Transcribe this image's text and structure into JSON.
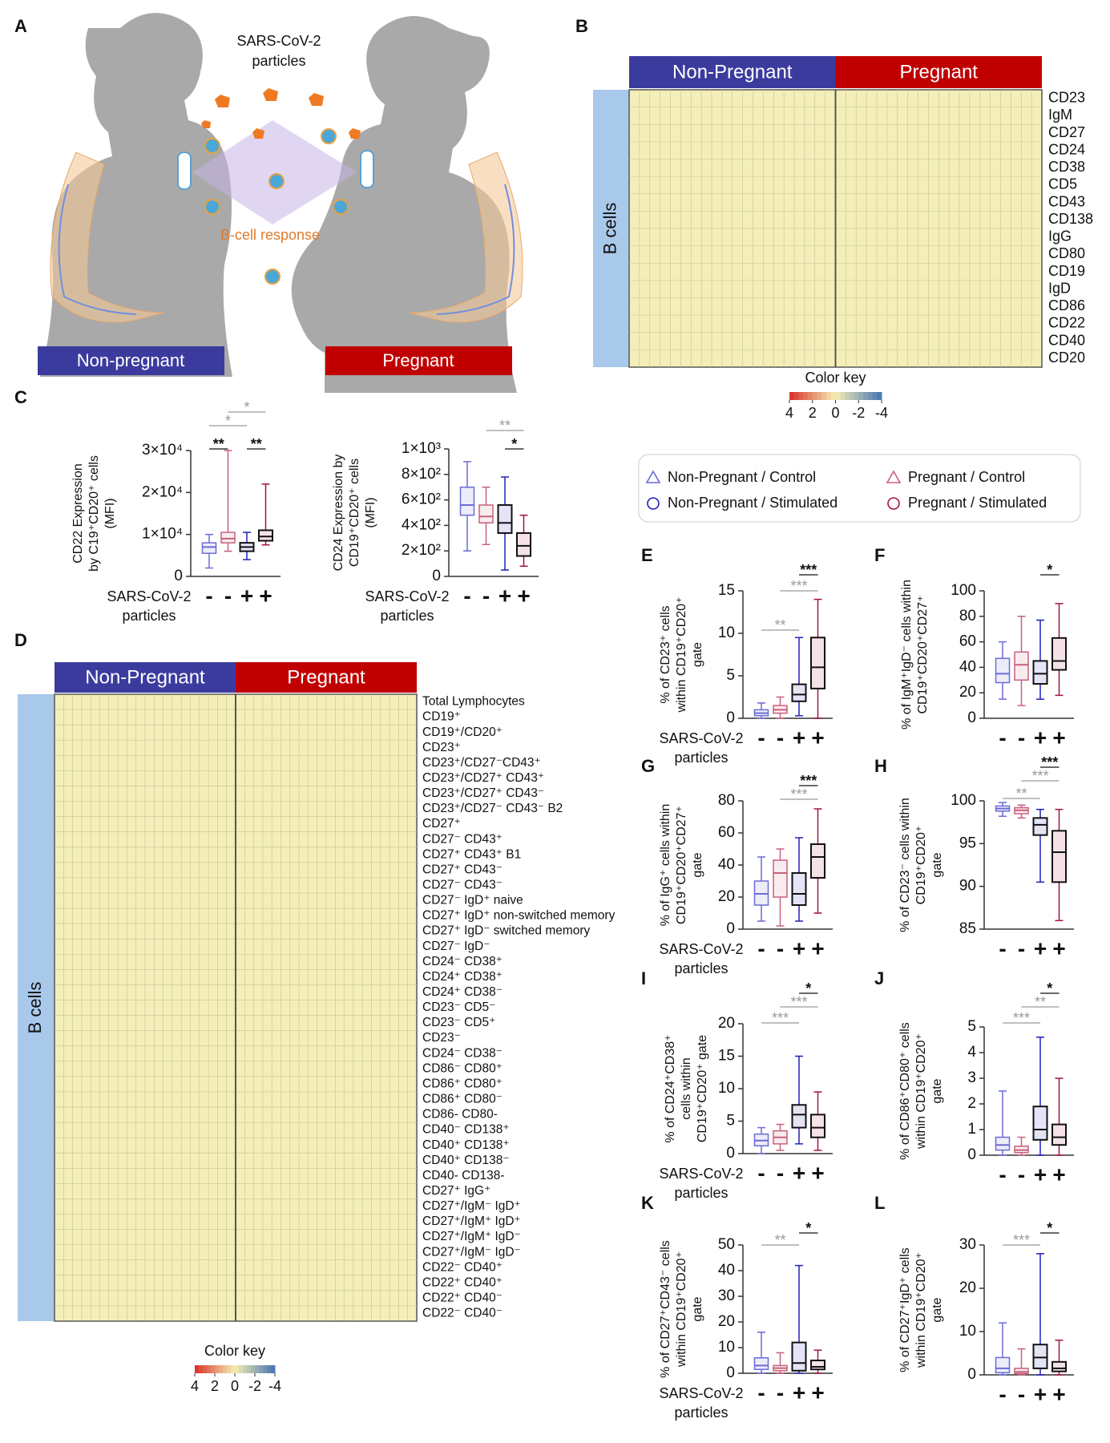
{
  "diagram": {
    "panel": "A",
    "title_lines": [
      "SARS-CoV-2",
      "particles"
    ],
    "response": "B-cell response",
    "left": "Non-pregnant",
    "right": "Pregnant",
    "left_color": "#3b3b9e",
    "right_color": "#c00000"
  },
  "groups": [
    {
      "name": "Non-Pregnant / Control",
      "color": "#6b6bd6",
      "marker": "triangle"
    },
    {
      "name": "Pregnant / Control",
      "color": "#c8607c",
      "marker": "triangle"
    },
    {
      "name": "Non-Pregnant / Stimulated",
      "color": "#2020b8",
      "marker": "circle"
    },
    {
      "name": "Pregnant / Stimulated",
      "color": "#a3143c",
      "marker": "circle"
    }
  ],
  "chart_data": [
    {
      "type": "heatmap",
      "panel": "B",
      "groups": [
        "Non-Pregnant",
        "Pregnant"
      ],
      "colors": [
        "#3b3b9e",
        "#c00000"
      ],
      "side_label": "B cells",
      "rows": [
        "CD23",
        "IgM",
        "CD27",
        "CD24",
        "CD38",
        "CD5",
        "CD43",
        "CD138",
        "IgG",
        "CD80",
        "CD19",
        "IgD",
        "CD86",
        "CD22",
        "CD40",
        "CD20"
      ],
      "color_key": {
        "title": "Color key",
        "ticks": [
          4,
          2,
          0,
          -2,
          -4
        ]
      }
    },
    {
      "type": "box",
      "panel": "C",
      "ylabel": [
        "CD22 Expression",
        "by C19⁺CD20⁺ cells",
        "(MFI)"
      ],
      "xlabel_lines": [
        "SARS-CoV-2",
        "particles"
      ],
      "categories": [
        "-",
        "-",
        "+",
        "+"
      ],
      "ylim": [
        0,
        30000
      ],
      "yticks": [
        0,
        {
          "value": 10000,
          "label": "1×10⁴"
        },
        {
          "value": 20000,
          "label": "2×10⁴"
        },
        {
          "value": 30000,
          "label": "3×10⁴"
        }
      ],
      "stats": [
        [
          2000,
          5500,
          7000,
          8000,
          10000
        ],
        [
          6000,
          8000,
          9000,
          10500,
          30000
        ],
        [
          4000,
          6000,
          7000,
          8000,
          10500
        ],
        [
          7500,
          8500,
          9500,
          11000,
          22000
        ]
      ],
      "significance": [
        "**",
        "**",
        "*",
        "*"
      ]
    },
    {
      "type": "box",
      "panel": null,
      "ylabel": [
        "CD24 Expression by",
        "CD19⁺CD20⁺ cells",
        "(MFI)"
      ],
      "xlabel_lines": [
        "SARS-CoV-2",
        "particles"
      ],
      "categories": [
        "-",
        "-",
        "+",
        "+"
      ],
      "ylim": [
        0,
        1000
      ],
      "yticks": [
        0,
        {
          "value": 200,
          "label": "2×10²"
        },
        {
          "value": 400,
          "label": "4×10²"
        },
        {
          "value": 600,
          "label": "6×10²"
        },
        {
          "value": 800,
          "label": "8×10²"
        },
        {
          "value": 1000,
          "label": "1×10³"
        }
      ],
      "stats": [
        [
          200,
          480,
          560,
          700,
          900
        ],
        [
          250,
          420,
          470,
          560,
          700
        ],
        [
          50,
          340,
          420,
          560,
          780
        ],
        [
          80,
          160,
          240,
          340,
          480
        ]
      ],
      "significance": [
        "**",
        "*"
      ]
    },
    {
      "type": "heatmap",
      "panel": "D",
      "groups": [
        "Non-Pregnant",
        "Pregnant"
      ],
      "colors": [
        "#3b3b9e",
        "#c00000"
      ],
      "side_label": "B cells",
      "rows": [
        "Total Lymphocytes",
        "CD19⁺",
        "CD19⁺/CD20⁺",
        "CD23⁺",
        "CD23⁺/CD27⁻CD43⁺",
        "CD23⁺/CD27⁺ CD43⁺",
        "CD23⁺/CD27⁺ CD43⁻",
        "CD23⁺/CD27⁻ CD43⁻ B2",
        "CD27⁺",
        "CD27⁻ CD43⁺",
        "CD27⁺ CD43⁺ B1",
        "CD27⁺ CD43⁻",
        "CD27⁻ CD43⁻",
        "CD27⁻ IgD⁺ naive",
        "CD27⁺ IgD⁺ non-switched memory",
        "CD27⁺ IgD⁻ switched memory",
        "CD27⁻ IgD⁻",
        "CD24⁻ CD38⁺",
        "CD24⁺ CD38⁺",
        "CD24⁺ CD38⁻",
        "CD23⁻ CD5⁻",
        "CD23⁻ CD5⁺",
        "CD23⁻",
        "CD24⁻ CD38⁻",
        "CD86⁻ CD80⁺",
        "CD86⁺ CD80⁺",
        "CD86⁺ CD80⁻",
        "CD86- CD80-",
        "CD40⁻ CD138⁺",
        "CD40⁺ CD138⁺",
        "CD40⁺ CD138⁻",
        "CD40- CD138-",
        "CD27⁺ IgG⁺",
        "CD27⁺/IgM⁻ IgD⁺",
        "CD27⁺/IgM⁺ IgD⁺",
        "CD27⁺/IgM⁺ IgD⁻",
        "CD27⁺/IgM⁻ IgD⁻",
        "CD22⁻ CD40⁺",
        "CD22⁺ CD40⁺",
        "CD22⁺ CD40⁻",
        "CD22⁻ CD40⁻"
      ],
      "color_key": {
        "title": "Color key",
        "ticks": [
          4,
          2,
          0,
          -2,
          -4
        ]
      }
    },
    {
      "type": "box",
      "panel": "E",
      "ylabel": [
        "% of CD23⁺ cells",
        "within CD19⁺CD20⁺",
        "gate"
      ],
      "xlabel_lines": [
        "SARS-CoV-2",
        "particles"
      ],
      "categories": [
        "-",
        "-",
        "+",
        "+"
      ],
      "ylim": [
        0,
        15
      ],
      "yticks": [
        0,
        5,
        10,
        15
      ],
      "stats": [
        [
          0,
          0.3,
          0.6,
          1,
          1.8
        ],
        [
          0,
          0.6,
          1,
          1.5,
          2.5
        ],
        [
          0.3,
          2,
          2.8,
          4,
          9.5
        ],
        [
          0,
          3.5,
          6,
          9.5,
          14
        ]
      ],
      "significance": [
        "***",
        "***",
        "**"
      ]
    },
    {
      "type": "box",
      "panel": "F",
      "ylabel": [
        "% of IgM⁺IgD⁻ cells within",
        "CD19⁺CD20⁺CD27⁺"
      ],
      "categories": [
        "-",
        "-",
        "+",
        "+"
      ],
      "ylim": [
        0,
        100
      ],
      "yticks": [
        0,
        20,
        40,
        60,
        80,
        100
      ],
      "stats": [
        [
          15,
          28,
          35,
          47,
          60
        ],
        [
          10,
          30,
          42,
          52,
          80
        ],
        [
          15,
          27,
          35,
          45,
          77
        ],
        [
          18,
          38,
          45,
          63,
          90
        ]
      ],
      "significance": [
        "*"
      ]
    },
    {
      "type": "box",
      "panel": "G",
      "ylabel": [
        "% of IgG⁺ cells within",
        "CD19⁺CD20⁺CD27⁺",
        "gate"
      ],
      "xlabel_lines": [
        "SARS-CoV-2",
        "particles"
      ],
      "categories": [
        "-",
        "-",
        "+",
        "+"
      ],
      "ylim": [
        0,
        80
      ],
      "yticks": [
        0,
        20,
        40,
        60,
        80
      ],
      "stats": [
        [
          5,
          15,
          22,
          30,
          45
        ],
        [
          2,
          20,
          35,
          43,
          50
        ],
        [
          5,
          15,
          22,
          35,
          57
        ],
        [
          10,
          32,
          45,
          53,
          75
        ]
      ],
      "significance": [
        "***",
        "***"
      ]
    },
    {
      "type": "box",
      "panel": "H",
      "ylabel": [
        "% of CD23⁻ cells within",
        "CD19⁺CD20⁺",
        "gate"
      ],
      "categories": [
        "-",
        "-",
        "+",
        "+"
      ],
      "ylim": [
        85,
        100
      ],
      "yticks": [
        85,
        90,
        95,
        100
      ],
      "stats": [
        [
          98.2,
          98.8,
          99.1,
          99.4,
          99.8
        ],
        [
          98,
          98.5,
          98.9,
          99.2,
          99.5
        ],
        [
          90.5,
          96,
          97.2,
          98,
          99
        ],
        [
          86,
          90.5,
          94,
          96.5,
          99
        ]
      ],
      "significance": [
        "***",
        "***",
        "**"
      ]
    },
    {
      "type": "box",
      "panel": "I",
      "ylabel": [
        "% of CD24⁺CD38⁺",
        "cells within",
        "CD19⁺CD20⁺ gate"
      ],
      "xlabel_lines": [
        "SARS-CoV-2",
        "particles"
      ],
      "categories": [
        "-",
        "-",
        "+",
        "+"
      ],
      "ylim": [
        0,
        20
      ],
      "yticks": [
        0,
        5,
        10,
        15,
        20
      ],
      "stats": [
        [
          0,
          1.2,
          2,
          3,
          4
        ],
        [
          0.5,
          1.5,
          2.5,
          3.5,
          4.5
        ],
        [
          1.5,
          4,
          6,
          7.5,
          15
        ],
        [
          0.5,
          2.5,
          4,
          6,
          9.5
        ]
      ],
      "significance": [
        "*",
        "***",
        "***"
      ]
    },
    {
      "type": "box",
      "panel": "J",
      "ylabel": [
        "% of CD86⁺CD80⁺ cells",
        "within CD19⁺CD20⁺",
        "gate"
      ],
      "categories": [
        "-",
        "-",
        "+",
        "+"
      ],
      "ylim": [
        0,
        5
      ],
      "yticks": [
        0,
        1,
        2,
        3,
        4,
        5
      ],
      "stats": [
        [
          0,
          0.2,
          0.4,
          0.7,
          2.5
        ],
        [
          0,
          0.1,
          0.2,
          0.35,
          0.7
        ],
        [
          0,
          0.6,
          1,
          1.9,
          4.6
        ],
        [
          0,
          0.4,
          0.7,
          1.2,
          3
        ]
      ],
      "significance": [
        "*",
        "**",
        "***"
      ]
    },
    {
      "type": "box",
      "panel": "K",
      "ylabel": [
        "% of CD27⁺CD43⁻ cells",
        "within CD19⁺CD20⁺",
        "gate"
      ],
      "xlabel_lines": [
        "SARS-CoV-2",
        "particles"
      ],
      "categories": [
        "-",
        "-",
        "+",
        "+"
      ],
      "ylim": [
        0,
        50
      ],
      "yticks": [
        0,
        10,
        20,
        30,
        40,
        50
      ],
      "stats": [
        [
          0,
          1.5,
          3,
          6,
          16
        ],
        [
          0,
          1,
          2,
          3,
          8
        ],
        [
          0,
          1,
          4,
          12,
          42
        ],
        [
          0,
          1.5,
          2.5,
          5,
          9
        ]
      ],
      "significance": [
        "**",
        "*"
      ]
    },
    {
      "type": "box",
      "panel": "L",
      "ylabel": [
        "% of CD27⁺IgD⁺ cells",
        "within CD19⁺CD20⁺",
        "gate"
      ],
      "categories": [
        "-",
        "-",
        "+",
        "+"
      ],
      "ylim": [
        0,
        30
      ],
      "yticks": [
        0,
        10,
        20,
        30
      ],
      "stats": [
        [
          0,
          0.5,
          1.5,
          4,
          12
        ],
        [
          0,
          0.3,
          0.7,
          1.5,
          6
        ],
        [
          0,
          1.5,
          4,
          7,
          28
        ],
        [
          0,
          0.8,
          1.5,
          3,
          8
        ]
      ],
      "significance": [
        "***",
        "*"
      ]
    }
  ]
}
